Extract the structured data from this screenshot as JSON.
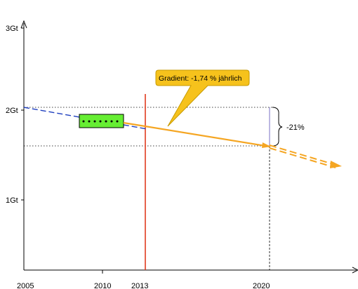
{
  "chart_data": {
    "type": "line",
    "x_ticks": [
      "2005",
      "2010",
      "2013",
      "2020"
    ],
    "y_ticks": [
      "3Gt",
      "2Gt",
      "1Gt"
    ],
    "xlim": [
      2005,
      2026
    ],
    "ylim": [
      0,
      3
    ],
    "grid": false,
    "series": [
      {
        "style": "dashed",
        "color": "#1f3fbf",
        "x": [
          2005,
          2013
        ],
        "y": [
          2.05,
          1.75
        ]
      },
      {
        "style": "solid",
        "color": "#f5a623",
        "x": [
          2013,
          2020
        ],
        "y": [
          1.8,
          1.62
        ]
      },
      {
        "style": "dashed",
        "color": "#f5a623",
        "x": [
          2020,
          2024.5
        ],
        "y": [
          1.62,
          1.4
        ]
      }
    ],
    "reference_lines": [
      {
        "orientation": "vertical",
        "x": 2013,
        "color": "#e03a1e"
      },
      {
        "orientation": "vertical",
        "x": 2020,
        "style": "dashed",
        "color": "#000000"
      },
      {
        "orientation": "horizontal",
        "y": 2.05,
        "style": "dotted",
        "color": "#000000"
      },
      {
        "orientation": "horizontal",
        "y": 1.62,
        "style": "dotted",
        "color": "#000000"
      }
    ],
    "highlight_box": {
      "color": "#66ee33",
      "x": [
        2008,
        2011.3
      ],
      "y": [
        1.78,
        1.96
      ]
    },
    "annotations": {
      "callout": "Gradient: -1,74 % jährlich",
      "reduction": "-21%"
    },
    "colors": {
      "callout_fill": "#f6c21c",
      "callout_stroke": "#c79a00"
    }
  }
}
